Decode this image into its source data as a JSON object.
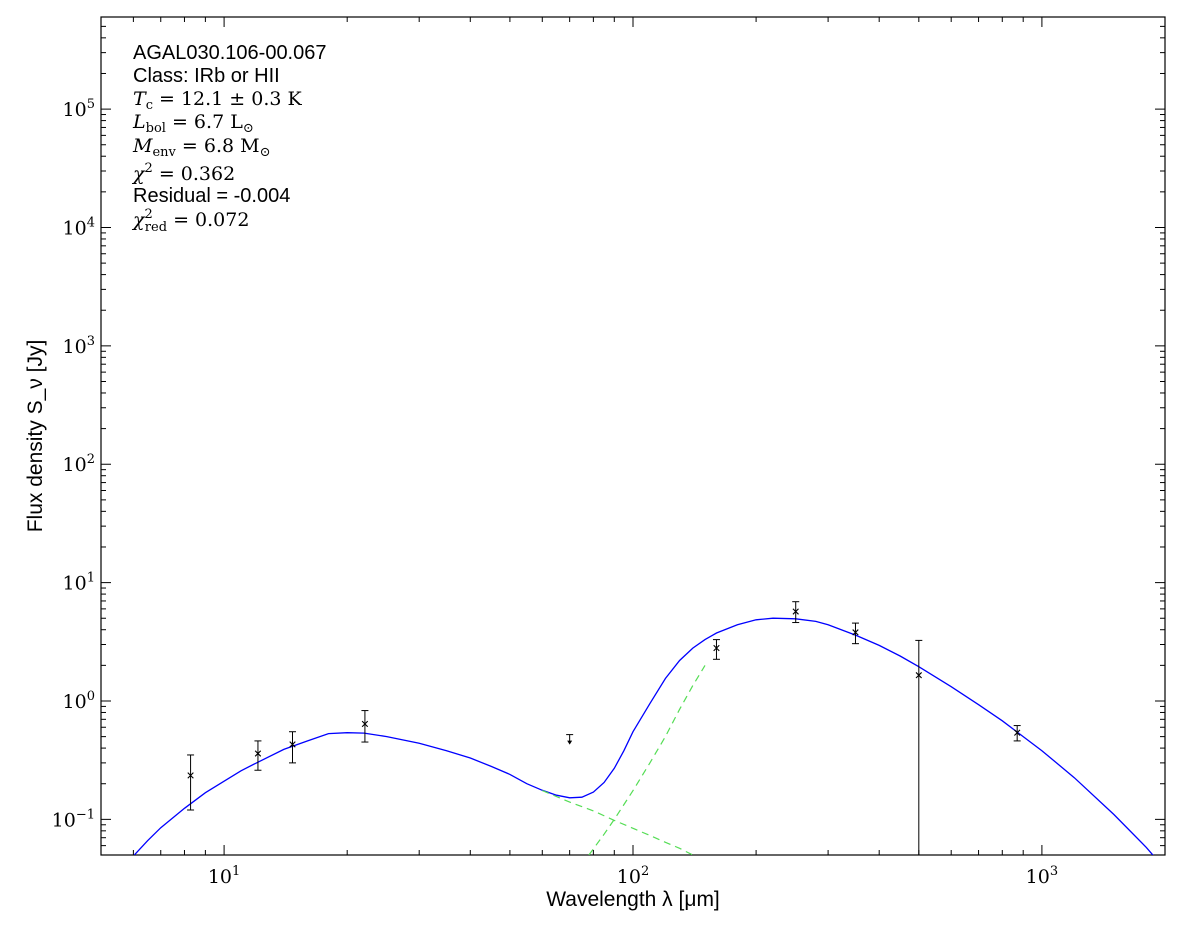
{
  "chart_data": {
    "type": "scatter",
    "xscale": "log",
    "yscale": "log",
    "xlim": [
      5,
      2000
    ],
    "ylim": [
      0.05,
      600000
    ],
    "xlabel": "Wavelength λ [μm]",
    "ylabel": "Flux density S_ν [Jy]",
    "grid": false,
    "x_ticks": [
      {
        "value": 10,
        "base": "10",
        "exp": "1"
      },
      {
        "value": 100,
        "base": "10",
        "exp": "2"
      },
      {
        "value": 1000,
        "base": "10",
        "exp": "3"
      }
    ],
    "y_ticks": [
      {
        "value": 0.1,
        "base": "10",
        "exp": "−1"
      },
      {
        "value": 1,
        "base": "10",
        "exp": "0"
      },
      {
        "value": 10,
        "base": "10",
        "exp": "1"
      },
      {
        "value": 100,
        "base": "10",
        "exp": "2"
      },
      {
        "value": 1000,
        "base": "10",
        "exp": "3"
      },
      {
        "value": 10000,
        "base": "10",
        "exp": "4"
      },
      {
        "value": 100000,
        "base": "10",
        "exp": "5"
      }
    ],
    "annotations": {
      "source": "AGAL030.106-00.067",
      "class_line": "Class: IRb or HII",
      "tc": {
        "sym": "T",
        "sub": "c",
        "rest": " = 12.1 ± 0.3 K"
      },
      "lbol": {
        "sym": "L",
        "sub": "bol",
        "rest": " = 6.7 L",
        "suffix_sub": "⊙"
      },
      "menv": {
        "sym": "M",
        "sub": "env",
        "rest": " = 6.8 M",
        "suffix_sub": "⊙"
      },
      "chi2": {
        "sym": "χ",
        "sup": "2",
        "rest": " = 0.362"
      },
      "residual": "Residual = -0.004",
      "chi2red": {
        "sym": "χ",
        "sup": "2",
        "sub": "red",
        "rest": " = 0.072"
      }
    },
    "points": [
      {
        "x": 8.28,
        "y": 0.235,
        "yerr_lo": 0.115,
        "yerr_hi": 0.115
      },
      {
        "x": 12.1,
        "y": 0.36,
        "yerr_lo": 0.1,
        "yerr_hi": 0.1
      },
      {
        "x": 14.7,
        "y": 0.43,
        "yerr_lo": 0.13,
        "yerr_hi": 0.12
      },
      {
        "x": 22.1,
        "y": 0.64,
        "yerr_lo": 0.19,
        "yerr_hi": 0.19
      },
      {
        "x": 160,
        "y": 2.8,
        "yerr_lo": 0.55,
        "yerr_hi": 0.5
      },
      {
        "x": 250,
        "y": 5.7,
        "yerr_lo": 1.1,
        "yerr_hi": 1.2
      },
      {
        "x": 350,
        "y": 3.8,
        "yerr_lo": 0.75,
        "yerr_hi": 0.75
      },
      {
        "x": 500,
        "y": 1.65,
        "yerr_lo": 1.6,
        "yerr_hi": 1.6
      },
      {
        "x": 870,
        "y": 0.54,
        "yerr_lo": 0.08,
        "yerr_hi": 0.08
      }
    ],
    "upper_limits": [
      {
        "x": 70,
        "y": 0.52
      }
    ],
    "series": [
      {
        "style": "total-fit",
        "color": "#0000ff",
        "dash": "solid",
        "x": [
          5.5,
          6.0,
          6.5,
          7.0,
          8.0,
          9.0,
          10,
          11,
          12,
          14,
          16,
          18,
          20,
          22,
          25,
          30,
          35,
          40,
          45,
          50,
          55,
          60,
          65,
          70,
          75,
          80,
          85,
          90,
          95,
          100,
          110,
          120,
          130,
          140,
          150,
          160,
          180,
          200,
          220,
          250,
          280,
          300,
          350,
          400,
          450,
          500,
          600,
          700,
          800,
          900,
          1000,
          1200,
          1500,
          1800,
          2000
        ],
        "y": [
          0.033,
          0.049,
          0.066,
          0.085,
          0.124,
          0.168,
          0.21,
          0.257,
          0.3,
          0.39,
          0.46,
          0.53,
          0.54,
          0.535,
          0.5,
          0.44,
          0.38,
          0.33,
          0.28,
          0.24,
          0.2,
          0.176,
          0.16,
          0.152,
          0.154,
          0.17,
          0.205,
          0.27,
          0.38,
          0.55,
          0.95,
          1.55,
          2.2,
          2.8,
          3.3,
          3.75,
          4.4,
          4.85,
          5.0,
          4.95,
          4.7,
          4.4,
          3.6,
          2.95,
          2.4,
          1.95,
          1.32,
          0.93,
          0.68,
          0.5,
          0.38,
          0.225,
          0.11,
          0.058,
          0.038
        ]
      },
      {
        "style": "warm-component",
        "color": "#55dd55",
        "dash": "dashed",
        "x": [
          60,
          70,
          80,
          90,
          100,
          110,
          120,
          130,
          140
        ],
        "y": [
          0.175,
          0.14,
          0.118,
          0.098,
          0.084,
          0.073,
          0.064,
          0.057,
          0.05
        ]
      },
      {
        "style": "cold-component",
        "color": "#55dd55",
        "dash": "dashed",
        "x": [
          78,
          85,
          90,
          100,
          110,
          120,
          130,
          140,
          150
        ],
        "y": [
          0.05,
          0.075,
          0.1,
          0.175,
          0.3,
          0.5,
          0.85,
          1.35,
          2.0
        ]
      }
    ]
  }
}
